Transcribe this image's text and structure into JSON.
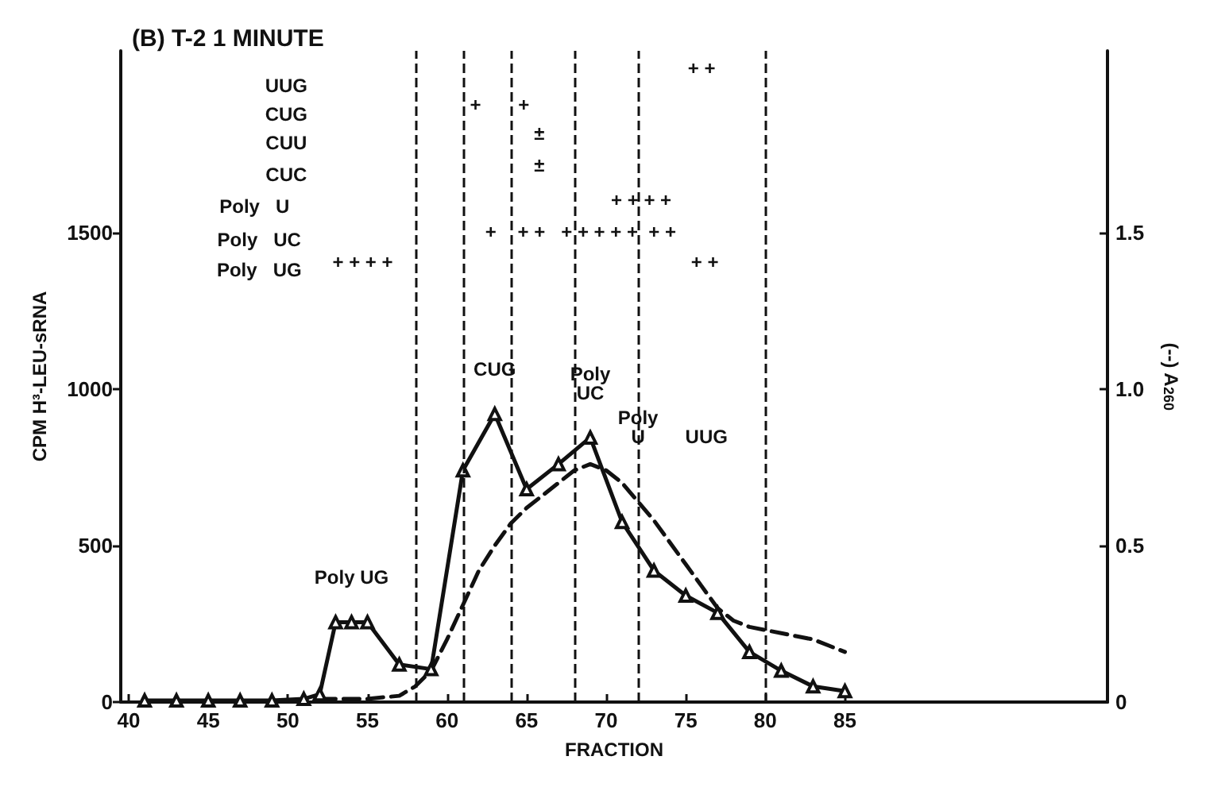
{
  "chart_data": {
    "type": "line",
    "title": "(B) T-2 1 MINUTE",
    "xlabel": "FRACTION",
    "ylabel": "CPM H³-LEU-sRNA",
    "y2label": "(--) A$_{260}$",
    "xlim": [
      39.5,
      101.5
    ],
    "xticks": [
      40,
      45,
      50,
      55,
      60,
      65,
      70,
      75,
      80,
      85
    ],
    "ylim": [
      0,
      2080
    ],
    "yticks": [
      0,
      500,
      1000,
      1500
    ],
    "y2lim": [
      0,
      2.08
    ],
    "y2ticks": [
      0,
      0.5,
      {
        "value": 1,
        "label": "1.0"
      },
      1.5
    ],
    "grid": false,
    "series": [
      {
        "color": "#111111",
        "marker": "triangle",
        "line_style": "solid",
        "x": [
          41,
          43,
          45,
          47,
          49,
          51,
          52,
          53,
          54,
          55,
          57,
          59,
          61,
          63,
          65,
          67,
          69,
          71,
          73,
          75,
          77,
          79,
          81,
          83,
          85
        ],
        "values": [
          5,
          5,
          5,
          5,
          5,
          10,
          25,
          255,
          255,
          255,
          120,
          105,
          740,
          920,
          680,
          760,
          845,
          575,
          420,
          340,
          285,
          160,
          100,
          50,
          35
        ]
      },
      {
        "color": "#111111",
        "marker": "none",
        "line_style": "dashed",
        "axis": "y2",
        "x": [
          52,
          55,
          57,
          58,
          59,
          60,
          61,
          62,
          63,
          64,
          65,
          66,
          67,
          68,
          69,
          70,
          71,
          72,
          73,
          74,
          75,
          76,
          77,
          78,
          79,
          80,
          81,
          82,
          83,
          84,
          85
        ],
        "values": [
          0.01,
          0.01,
          0.02,
          0.05,
          0.1,
          0.2,
          0.31,
          0.42,
          0.5,
          0.57,
          0.62,
          0.66,
          0.7,
          0.74,
          0.76,
          0.74,
          0.7,
          0.64,
          0.58,
          0.51,
          0.44,
          0.37,
          0.3,
          0.26,
          0.24,
          0.23,
          0.22,
          0.21,
          0.2,
          0.18,
          0.16
        ]
      }
    ],
    "ref_lines": [
      {
        "axis": "x",
        "value": 58,
        "color": "#111111",
        "line_style": "dashed"
      },
      {
        "axis": "x",
        "value": 61,
        "color": "#111111",
        "line_style": "dashed"
      },
      {
        "axis": "x",
        "value": 64,
        "color": "#111111",
        "line_style": "dashed"
      },
      {
        "axis": "x",
        "value": 68,
        "color": "#111111",
        "line_style": "dashed"
      },
      {
        "axis": "x",
        "value": 72,
        "color": "#111111",
        "line_style": "dashed"
      },
      {
        "axis": "x",
        "value": 80,
        "color": "#111111",
        "line_style": "dashed"
      }
    ],
    "annotations": [
      {
        "text": "Poly UG",
        "x": 54,
        "y": 255
      },
      {
        "text": "CUG",
        "x": 63,
        "y": 920
      },
      {
        "text": "Poly\nUC",
        "x": 69,
        "y": 845
      },
      "Poly\nU",
      "UUG",
      "UUG",
      "CUG",
      "CUU",
      "CUC",
      "Poly   U",
      "Poly   UC",
      "Poly   UG",
      "+ + + +",
      "+       +",
      "±",
      "±",
      "+ + + +",
      "+    + +   + + + + +  + +",
      "+ +",
      "+ +"
    ]
  }
}
